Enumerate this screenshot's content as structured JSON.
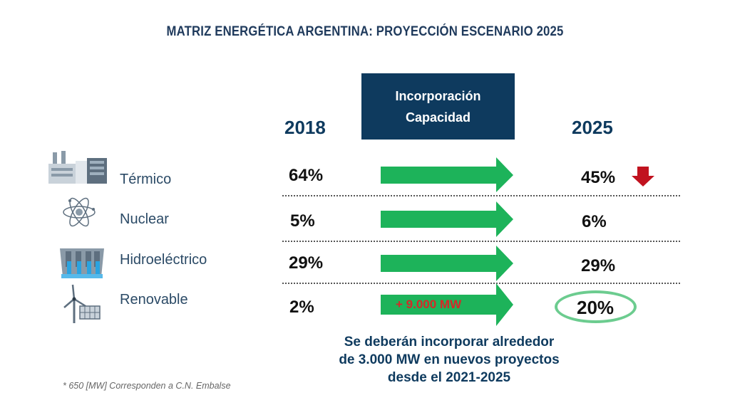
{
  "title": "MATRIZ ENERGÉTICA ARGENTINA: PROYECCIÓN ESCENARIO 2025",
  "header": {
    "line1": "Incorporación",
    "line2": "Capacidad"
  },
  "colors": {
    "title": "#1f3a5c",
    "header_bg": "#0e3a5e",
    "arrow": "#1db35a",
    "down_arrow": "#c1121f",
    "highlight": "#6ccc8f"
  },
  "chart_data": {
    "type": "table",
    "columns": [
      "2018",
      "2025"
    ],
    "categories": [
      "Térmico",
      "Nuclear",
      "Hidroeléctrico",
      "Renovable"
    ],
    "series": [
      {
        "name": "2018",
        "values": [
          64,
          5,
          29,
          2
        ],
        "labels": [
          "64%",
          "5%",
          "29%",
          "2%"
        ]
      },
      {
        "name": "2025",
        "values": [
          45,
          6,
          29,
          20
        ],
        "labels": [
          "45%",
          "6%",
          "29%",
          "20%"
        ]
      }
    ],
    "arrow_labels": [
      "",
      "",
      "",
      "+ 9.000 MW"
    ],
    "decrease_indicator": {
      "category": "Térmico",
      "icon": "down-arrow-icon"
    },
    "highlighted": {
      "category": "Renovable",
      "value": "20%"
    }
  },
  "icons": [
    "thermal-plant-icon",
    "atom-icon",
    "dam-icon",
    "wind-solar-icon"
  ],
  "bottom_note": {
    "line1": "Se deberán incorporar alrededor",
    "line2": "de 3.000 MW en nuevos proyectos",
    "line3": "desde el 2021-2025"
  },
  "footnote": "* 650 [MW] Corresponden a C.N. Embalse"
}
